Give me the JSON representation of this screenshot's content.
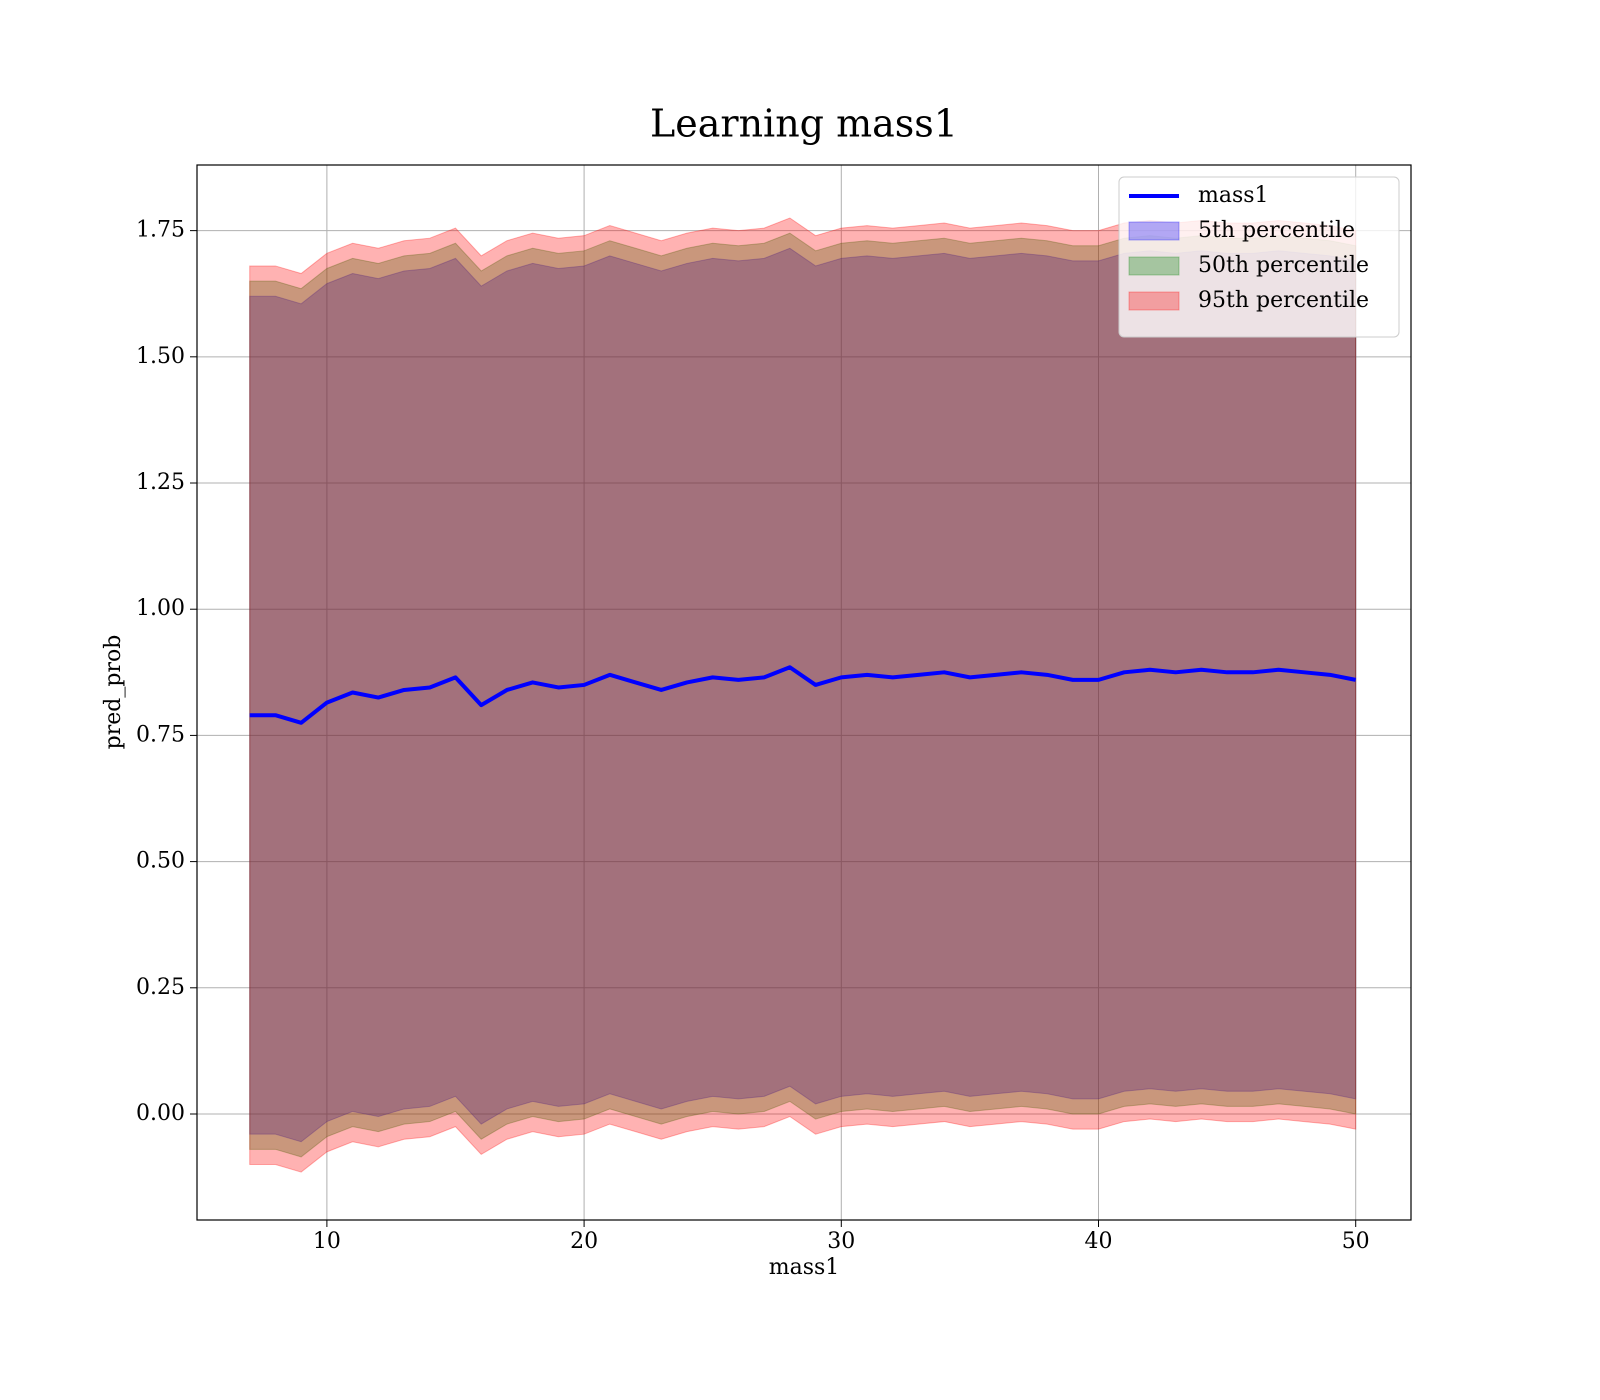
{
  "chart_data": {
    "type": "line",
    "title": "Learning mass1",
    "xlabel": "mass1",
    "ylabel": "pred_prob",
    "x": [
      7,
      8,
      9,
      10,
      11,
      12,
      13,
      14,
      15,
      16,
      17,
      18,
      19,
      20,
      21,
      22,
      23,
      24,
      25,
      26,
      27,
      28,
      29,
      30,
      31,
      32,
      33,
      34,
      35,
      36,
      37,
      38,
      39,
      40,
      41,
      42,
      43,
      44,
      45,
      46,
      47,
      48,
      49,
      50
    ],
    "series": [
      {
        "name": "mass1",
        "color": "#0000ff",
        "values": [
          0.79,
          0.79,
          0.775,
          0.815,
          0.835,
          0.825,
          0.84,
          0.845,
          0.865,
          0.81,
          0.84,
          0.855,
          0.845,
          0.85,
          0.87,
          0.855,
          0.84,
          0.855,
          0.865,
          0.86,
          0.865,
          0.885,
          0.85,
          0.865,
          0.87,
          0.865,
          0.87,
          0.875,
          0.865,
          0.87,
          0.875,
          0.87,
          0.86,
          0.86,
          0.875,
          0.88,
          0.875,
          0.88,
          0.875,
          0.875,
          0.88,
          0.875,
          0.87,
          0.86
        ]
      }
    ],
    "bands": [
      {
        "name": "5th percentile",
        "color": "#0000ff",
        "lower": [
          -0.04,
          -0.04,
          -0.055,
          -0.015,
          0.005,
          -0.005,
          0.01,
          0.015,
          0.035,
          -0.02,
          0.01,
          0.025,
          0.015,
          0.02,
          0.04,
          0.025,
          0.01,
          0.025,
          0.035,
          0.03,
          0.035,
          0.055,
          0.02,
          0.035,
          0.04,
          0.035,
          0.04,
          0.045,
          0.035,
          0.04,
          0.045,
          0.04,
          0.03,
          0.03,
          0.045,
          0.05,
          0.045,
          0.05,
          0.045,
          0.045,
          0.05,
          0.045,
          0.04,
          0.03
        ],
        "upper": [
          1.62,
          1.62,
          1.605,
          1.645,
          1.665,
          1.655,
          1.67,
          1.675,
          1.695,
          1.64,
          1.67,
          1.685,
          1.675,
          1.68,
          1.7,
          1.685,
          1.67,
          1.685,
          1.695,
          1.69,
          1.695,
          1.715,
          1.68,
          1.695,
          1.7,
          1.695,
          1.7,
          1.705,
          1.695,
          1.7,
          1.705,
          1.7,
          1.69,
          1.69,
          1.705,
          1.71,
          1.705,
          1.71,
          1.705,
          1.705,
          1.71,
          1.705,
          1.7,
          1.69
        ]
      },
      {
        "name": "50th percentile",
        "color": "#008000",
        "lower": [
          -0.07,
          -0.07,
          -0.085,
          -0.045,
          -0.025,
          -0.035,
          -0.02,
          -0.015,
          0.005,
          -0.05,
          -0.02,
          -0.005,
          -0.015,
          -0.01,
          0.01,
          -0.005,
          -0.02,
          -0.005,
          0.005,
          0,
          0.005,
          0.025,
          -0.01,
          0.005,
          0.01,
          0.005,
          0.01,
          0.015,
          0.005,
          0.01,
          0.015,
          0.01,
          0,
          0,
          0.015,
          0.02,
          0.015,
          0.02,
          0.015,
          0.015,
          0.02,
          0.015,
          0.01,
          0
        ],
        "upper": [
          1.65,
          1.65,
          1.635,
          1.675,
          1.695,
          1.685,
          1.7,
          1.705,
          1.725,
          1.67,
          1.7,
          1.715,
          1.705,
          1.71,
          1.73,
          1.715,
          1.7,
          1.715,
          1.725,
          1.72,
          1.725,
          1.745,
          1.71,
          1.725,
          1.73,
          1.725,
          1.73,
          1.735,
          1.725,
          1.73,
          1.735,
          1.73,
          1.72,
          1.72,
          1.735,
          1.74,
          1.735,
          1.74,
          1.735,
          1.735,
          1.74,
          1.735,
          1.73,
          1.72
        ]
      },
      {
        "name": "95th percentile",
        "color": "#ff0000",
        "lower": [
          -0.1,
          -0.1,
          -0.115,
          -0.075,
          -0.055,
          -0.065,
          -0.05,
          -0.045,
          -0.025,
          -0.08,
          -0.05,
          -0.035,
          -0.045,
          -0.04,
          -0.02,
          -0.035,
          -0.05,
          -0.035,
          -0.025,
          -0.03,
          -0.025,
          -0.005,
          -0.04,
          -0.025,
          -0.02,
          -0.025,
          -0.02,
          -0.015,
          -0.025,
          -0.02,
          -0.015,
          -0.02,
          -0.03,
          -0.03,
          -0.015,
          -0.01,
          -0.015,
          -0.01,
          -0.015,
          -0.015,
          -0.01,
          -0.015,
          -0.02,
          -0.03
        ],
        "upper": [
          1.68,
          1.68,
          1.665,
          1.705,
          1.725,
          1.715,
          1.73,
          1.735,
          1.755,
          1.7,
          1.73,
          1.745,
          1.735,
          1.74,
          1.76,
          1.745,
          1.73,
          1.745,
          1.755,
          1.75,
          1.755,
          1.775,
          1.74,
          1.755,
          1.76,
          1.755,
          1.76,
          1.765,
          1.755,
          1.76,
          1.765,
          1.76,
          1.75,
          1.75,
          1.765,
          1.77,
          1.765,
          1.77,
          1.765,
          1.765,
          1.77,
          1.765,
          1.76,
          1.75
        ]
      }
    ],
    "band_opacity": 0.3,
    "xlim": [
      4.95,
      52.15
    ],
    "ylim": [
      -0.21,
      1.88
    ],
    "xticks": [
      10,
      20,
      30,
      40,
      50
    ],
    "yticks": [
      {
        "value": 0,
        "label": "0.00"
      },
      0.25,
      {
        "value": 0.5,
        "label": "0.50"
      },
      0.75,
      {
        "value": 1,
        "label": "1.00"
      },
      1.25,
      {
        "value": 1.5,
        "label": "1.50"
      },
      1.75
    ],
    "grid": true,
    "legend": "upper right"
  }
}
